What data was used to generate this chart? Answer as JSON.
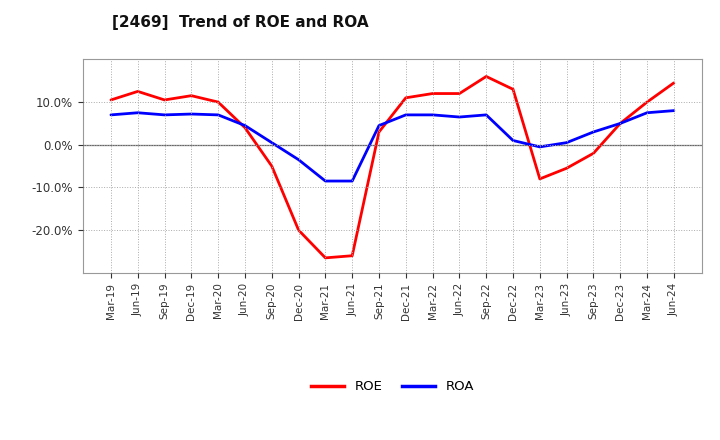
{
  "title": "[2469]  Trend of ROE and ROA",
  "x_labels": [
    "Mar-19",
    "Jun-19",
    "Sep-19",
    "Dec-19",
    "Mar-20",
    "Jun-20",
    "Sep-20",
    "Dec-20",
    "Mar-21",
    "Jun-21",
    "Sep-21",
    "Dec-21",
    "Mar-22",
    "Jun-22",
    "Sep-22",
    "Dec-22",
    "Mar-23",
    "Jun-23",
    "Sep-23",
    "Dec-23",
    "Mar-24",
    "Jun-24"
  ],
  "roe": [
    10.5,
    12.5,
    10.5,
    11.5,
    10.0,
    4.0,
    -5.0,
    -20.0,
    -26.5,
    -26.0,
    3.0,
    11.0,
    12.0,
    12.0,
    16.0,
    13.0,
    -8.0,
    -5.5,
    -2.0,
    5.0,
    10.0,
    14.5
  ],
  "roa": [
    7.0,
    7.5,
    7.0,
    7.2,
    7.0,
    4.5,
    0.5,
    -3.5,
    -8.5,
    -8.5,
    4.5,
    7.0,
    7.0,
    6.5,
    7.0,
    1.0,
    -0.5,
    0.5,
    3.0,
    5.0,
    7.5,
    8.0
  ],
  "roe_color": "#ff0000",
  "roa_color": "#0000ff",
  "ylim_min": -30,
  "ylim_max": 20,
  "ytick_labels": [
    "10.0%",
    "0.0%",
    "-10.0%",
    "-20.0%"
  ],
  "ytick_values": [
    10.0,
    0.0,
    -10.0,
    -20.0
  ],
  "background_color": "#ffffff",
  "plot_bg_color": "#ffffff",
  "grid_color": "#aaaaaa",
  "line_width": 2.0,
  "title_fontsize": 11
}
